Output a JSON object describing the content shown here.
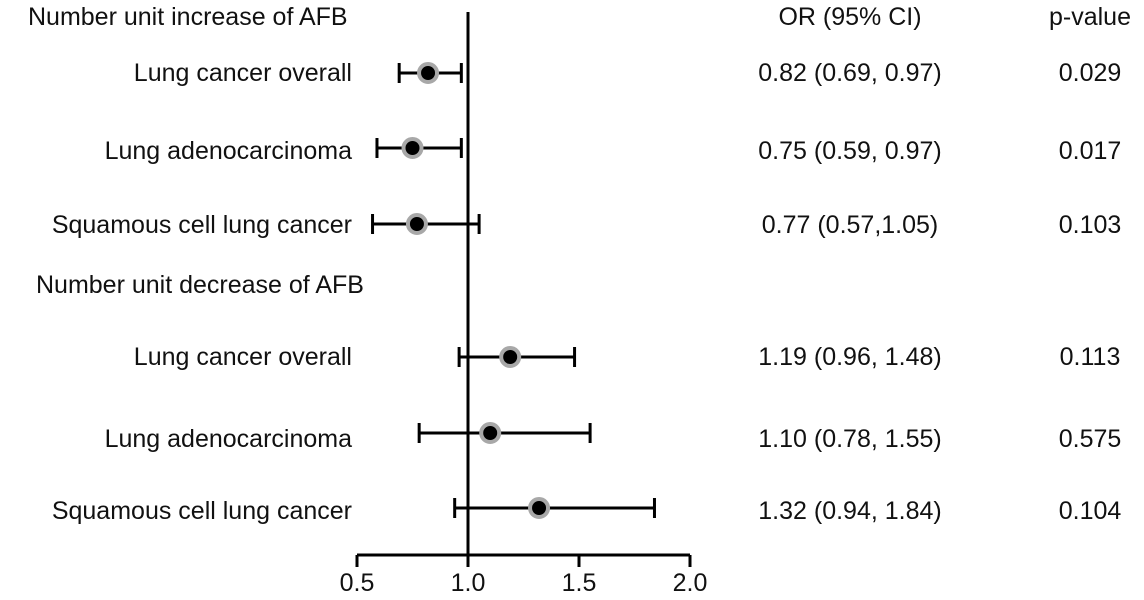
{
  "chart_data": {
    "type": "forest",
    "title": "",
    "xlabel": "",
    "xlim": [
      0.5,
      2.0
    ],
    "xticks": [
      "0.5",
      "1.0",
      "1.5",
      "2.0"
    ],
    "reference_line": 1.0,
    "column_headers": {
      "or": "OR (95% CI)",
      "p": "p-value"
    },
    "groups": [
      {
        "name": "Number unit increase of AFB",
        "rows": [
          {
            "label": "Lung cancer overall",
            "or": 0.82,
            "lo": 0.69,
            "hi": 0.97,
            "or_text": "0.82 (0.69, 0.97)",
            "p": "0.029"
          },
          {
            "label": "Lung adenocarcinoma",
            "or": 0.75,
            "lo": 0.59,
            "hi": 0.97,
            "or_text": "0.75 (0.59, 0.97)",
            "p": "0.017"
          },
          {
            "label": "Squamous cell lung cancer",
            "or": 0.77,
            "lo": 0.57,
            "hi": 1.05,
            "or_text": "0.77 (0.57,1.05)",
            "p": "0.103"
          }
        ]
      },
      {
        "name": "Number unit decrease of AFB",
        "rows": [
          {
            "label": "Lung cancer overall",
            "or": 1.19,
            "lo": 0.96,
            "hi": 1.48,
            "or_text": "1.19 (0.96, 1.48)",
            "p": "0.113"
          },
          {
            "label": "Lung adenocarcinoma",
            "or": 1.1,
            "lo": 0.78,
            "hi": 1.55,
            "or_text": "1.10 (0.78, 1.55)",
            "p": "0.575"
          },
          {
            "label": "Squamous cell lung cancer",
            "or": 1.32,
            "lo": 0.94,
            "hi": 1.84,
            "or_text": "1.32 (0.94, 1.84)",
            "p": "0.104"
          }
        ]
      }
    ],
    "colors": {
      "line": "#000000",
      "point_fill": "#000000",
      "point_ring": "#a8a8a8"
    }
  }
}
